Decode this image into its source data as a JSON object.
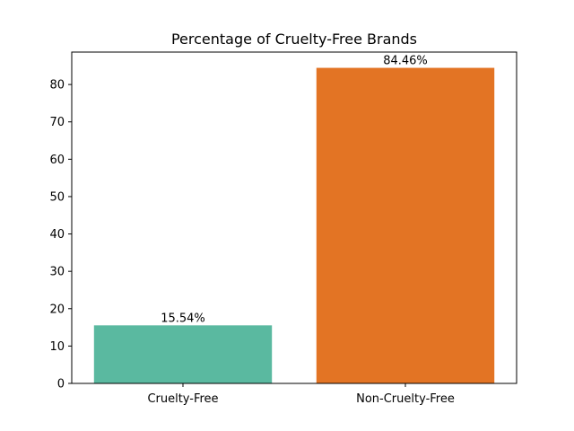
{
  "chart_data": {
    "type": "bar",
    "title": "Percentage of Cruelty-Free Brands",
    "xlabel": "",
    "ylabel": "",
    "categories": [
      "Cruelty-Free",
      "Non-Cruelty-Free"
    ],
    "values": [
      15.54,
      84.46
    ],
    "data_labels": [
      "15.54%",
      "84.46%"
    ],
    "colors": [
      "#5ab9a0",
      "#e37424"
    ],
    "ylim": [
      0,
      88.68
    ],
    "yticks": [
      0,
      10,
      20,
      30,
      40,
      50,
      60,
      70,
      80
    ],
    "grid": false,
    "legend": "none"
  }
}
